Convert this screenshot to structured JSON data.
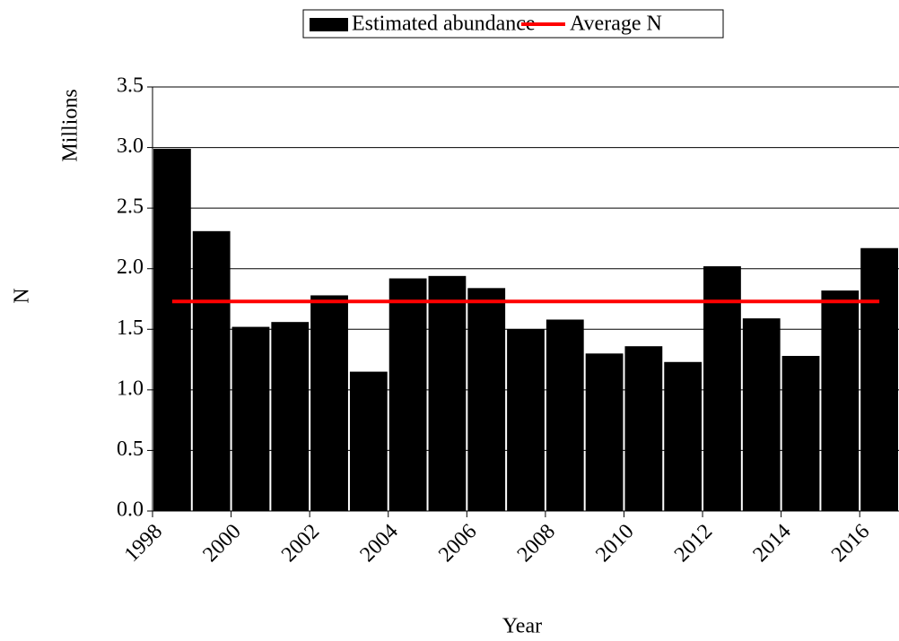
{
  "chart_data": {
    "type": "bar",
    "x_label": "Year",
    "y_label": "Millions",
    "y_title": "N",
    "categories": [
      "1998",
      null,
      "2000",
      null,
      "2002",
      null,
      "2004",
      null,
      "2006",
      null,
      "2008",
      null,
      "2010",
      null,
      "2012",
      null,
      "2014",
      null,
      "2016"
    ],
    "series": [
      {
        "name": "Estimated abundance",
        "type": "bar",
        "color": "#000000",
        "values": [
          2.99,
          2.31,
          1.52,
          1.56,
          1.78,
          1.15,
          1.92,
          1.94,
          1.84,
          1.5,
          1.58,
          1.3,
          1.36,
          1.23,
          2.02,
          1.59,
          1.28,
          1.82,
          2.17
        ]
      },
      {
        "name": "Average N",
        "type": "line",
        "color": "#ff0000",
        "values": [
          1.73,
          1.73,
          1.73,
          1.73,
          1.73,
          1.73,
          1.73,
          1.73,
          1.73,
          1.73,
          1.73,
          1.73,
          1.73,
          1.73,
          1.73,
          1.73,
          1.73,
          1.73,
          1.73
        ]
      }
    ],
    "ylim": [
      0,
      3.5
    ],
    "yticks": [
      {
        "value": 0,
        "label": "0.0"
      },
      0.5,
      {
        "value": 1,
        "label": "1.0"
      },
      1.5,
      {
        "value": 2,
        "label": "2.0"
      },
      2.5,
      {
        "value": 3,
        "label": "3.0"
      },
      3.5
    ],
    "grid": true,
    "legend": "top"
  }
}
